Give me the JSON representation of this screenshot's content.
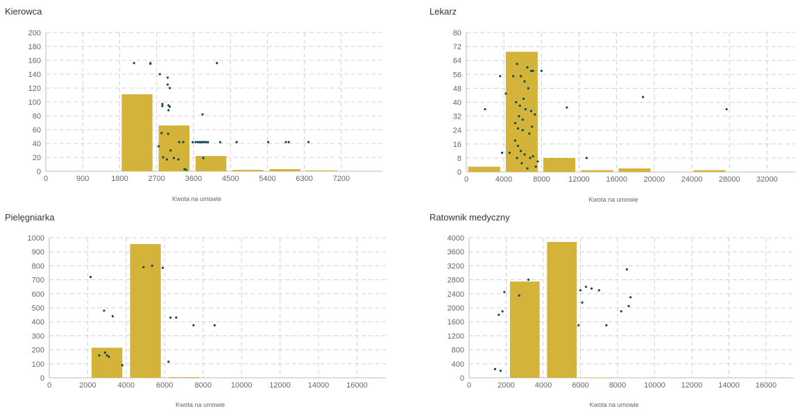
{
  "colors": {
    "bar": "#d4b33b",
    "point": "#0b4a55",
    "grid": "#d0d0d0",
    "axis": "#bbbbbb"
  },
  "chart_data": [
    {
      "type": "bar+scatter",
      "title": "Kierowca",
      "xlabel": "Kwota na umowie",
      "xlim": [
        0,
        8200
      ],
      "ylim": [
        0,
        200
      ],
      "xticks": [
        0,
        900,
        1800,
        2700,
        3600,
        4500,
        5400,
        6300,
        7200
      ],
      "yticks": [
        0,
        20,
        40,
        60,
        80,
        100,
        120,
        140,
        160,
        180,
        200
      ],
      "grid": true,
      "bars": [
        {
          "x0": 1850,
          "x1": 2600,
          "value": 111
        },
        {
          "x0": 2750,
          "x1": 3500,
          "value": 66
        },
        {
          "x0": 3650,
          "x1": 4400,
          "value": 22
        },
        {
          "x0": 4550,
          "x1": 5300,
          "value": 2
        },
        {
          "x0": 5450,
          "x1": 6200,
          "value": 3
        },
        {
          "x0": 6350,
          "x1": 7100,
          "value": 1
        }
      ],
      "points": [
        [
          2150,
          156
        ],
        [
          2550,
          156
        ],
        [
          2550,
          155
        ],
        [
          4170,
          156
        ],
        [
          2780,
          140
        ],
        [
          2970,
          135
        ],
        [
          2970,
          125
        ],
        [
          3020,
          120
        ],
        [
          2840,
          97
        ],
        [
          2840,
          94
        ],
        [
          2990,
          95
        ],
        [
          3020,
          93
        ],
        [
          2990,
          88
        ],
        [
          3820,
          82
        ],
        [
          2820,
          55
        ],
        [
          2980,
          54
        ],
        [
          2750,
          36
        ],
        [
          3250,
          42
        ],
        [
          3350,
          42
        ],
        [
          3580,
          42
        ],
        [
          3650,
          42
        ],
        [
          3700,
          42
        ],
        [
          3740,
          42
        ],
        [
          3780,
          42
        ],
        [
          3820,
          42
        ],
        [
          3860,
          42
        ],
        [
          3900,
          42
        ],
        [
          3950,
          42
        ],
        [
          4250,
          42
        ],
        [
          4650,
          42
        ],
        [
          5420,
          42
        ],
        [
          5850,
          42
        ],
        [
          5920,
          42
        ],
        [
          6400,
          42
        ],
        [
          3040,
          30
        ],
        [
          2860,
          20
        ],
        [
          3120,
          19
        ],
        [
          2950,
          17
        ],
        [
          3230,
          17
        ],
        [
          3840,
          19
        ],
        [
          3380,
          3
        ],
        [
          3420,
          2
        ]
      ]
    },
    {
      "type": "bar+scatter",
      "title": "Lekarz",
      "xlabel": "Kwota na umowie",
      "xlim": [
        0,
        35000
      ],
      "ylim": [
        0,
        80
      ],
      "xticks": [
        0,
        4000,
        8000,
        12000,
        16000,
        20000,
        24000,
        28000,
        32000
      ],
      "yticks": [
        0,
        8,
        16,
        24,
        32,
        40,
        48,
        56,
        64,
        72,
        80
      ],
      "grid": true,
      "bars": [
        {
          "x0": 200,
          "x1": 3600,
          "value": 3
        },
        {
          "x0": 4200,
          "x1": 7600,
          "value": 69
        },
        {
          "x0": 8200,
          "x1": 11600,
          "value": 8
        },
        {
          "x0": 12200,
          "x1": 15600,
          "value": 1
        },
        {
          "x0": 16200,
          "x1": 19600,
          "value": 2
        },
        {
          "x0": 24200,
          "x1": 27600,
          "value": 1
        }
      ],
      "points": [
        [
          2000,
          36
        ],
        [
          3600,
          55
        ],
        [
          4200,
          45
        ],
        [
          5000,
          55
        ],
        [
          5400,
          62
        ],
        [
          5800,
          55
        ],
        [
          6200,
          52
        ],
        [
          6500,
          60
        ],
        [
          6900,
          58
        ],
        [
          7100,
          58
        ],
        [
          8000,
          58
        ],
        [
          5300,
          40
        ],
        [
          5700,
          38
        ],
        [
          6100,
          42
        ],
        [
          6600,
          48
        ],
        [
          6300,
          36
        ],
        [
          5600,
          32
        ],
        [
          6000,
          30
        ],
        [
          6900,
          35
        ],
        [
          7300,
          33
        ],
        [
          5200,
          28
        ],
        [
          5500,
          25
        ],
        [
          6000,
          24
        ],
        [
          6700,
          22
        ],
        [
          7000,
          26
        ],
        [
          5200,
          18
        ],
        [
          5500,
          15
        ],
        [
          5800,
          12
        ],
        [
          6200,
          10
        ],
        [
          6800,
          8
        ],
        [
          7100,
          9
        ],
        [
          7600,
          6
        ],
        [
          7400,
          3
        ],
        [
          6500,
          2
        ],
        [
          5900,
          5
        ],
        [
          3800,
          11
        ],
        [
          4600,
          11
        ],
        [
          5400,
          8
        ],
        [
          10700,
          37
        ],
        [
          12800,
          8
        ],
        [
          18800,
          43
        ],
        [
          27700,
          36
        ]
      ]
    },
    {
      "type": "bar+scatter",
      "title": "Pielęgniarka",
      "xlabel": "Kwota na umowie",
      "xlim": [
        0,
        17500
      ],
      "ylim": [
        0,
        1000
      ],
      "xticks": [
        0,
        2000,
        4000,
        6000,
        8000,
        10000,
        12000,
        14000,
        16000
      ],
      "yticks": [
        0,
        100,
        200,
        300,
        400,
        500,
        600,
        700,
        800,
        900,
        1000
      ],
      "grid": true,
      "bars": [
        {
          "x0": 2200,
          "x1": 3800,
          "value": 215
        },
        {
          "x0": 4200,
          "x1": 5800,
          "value": 955
        },
        {
          "x0": 6200,
          "x1": 7800,
          "value": 5
        }
      ],
      "points": [
        [
          2150,
          720
        ],
        [
          2850,
          480
        ],
        [
          3300,
          440
        ],
        [
          2600,
          160
        ],
        [
          3000,
          160
        ],
        [
          3100,
          150
        ],
        [
          2900,
          180
        ],
        [
          3800,
          90
        ],
        [
          4900,
          790
        ],
        [
          5350,
          800
        ],
        [
          5900,
          785
        ],
        [
          6300,
          430
        ],
        [
          6600,
          430
        ],
        [
          7500,
          375
        ],
        [
          8600,
          375
        ],
        [
          6200,
          115
        ]
      ]
    },
    {
      "type": "bar+scatter",
      "title": "Ratownik medyczny",
      "xlabel": "Kwota na umowie",
      "xlim": [
        0,
        17500
      ],
      "ylim": [
        0,
        4000
      ],
      "xticks": [
        0,
        2000,
        4000,
        6000,
        8000,
        10000,
        12000,
        14000,
        16000
      ],
      "yticks": [
        0,
        400,
        800,
        1200,
        1600,
        2000,
        2400,
        2800,
        3200,
        3600,
        4000
      ],
      "grid": true,
      "bars": [
        {
          "x0": 2200,
          "x1": 3800,
          "value": 2750
        },
        {
          "x0": 4200,
          "x1": 5800,
          "value": 3880
        },
        {
          "x0": 6200,
          "x1": 7800,
          "value": 8
        }
      ],
      "points": [
        [
          1600,
          1800
        ],
        [
          1800,
          1900
        ],
        [
          1900,
          2450
        ],
        [
          2700,
          2350
        ],
        [
          3200,
          2800
        ],
        [
          1400,
          250
        ],
        [
          1700,
          200
        ],
        [
          6000,
          2500
        ],
        [
          6300,
          2600
        ],
        [
          6600,
          2550
        ],
        [
          7000,
          2500
        ],
        [
          7400,
          1500
        ],
        [
          8500,
          3100
        ],
        [
          8600,
          2050
        ],
        [
          8700,
          2300
        ],
        [
          8200,
          1900
        ],
        [
          6100,
          2150
        ],
        [
          5900,
          1500
        ]
      ]
    }
  ]
}
